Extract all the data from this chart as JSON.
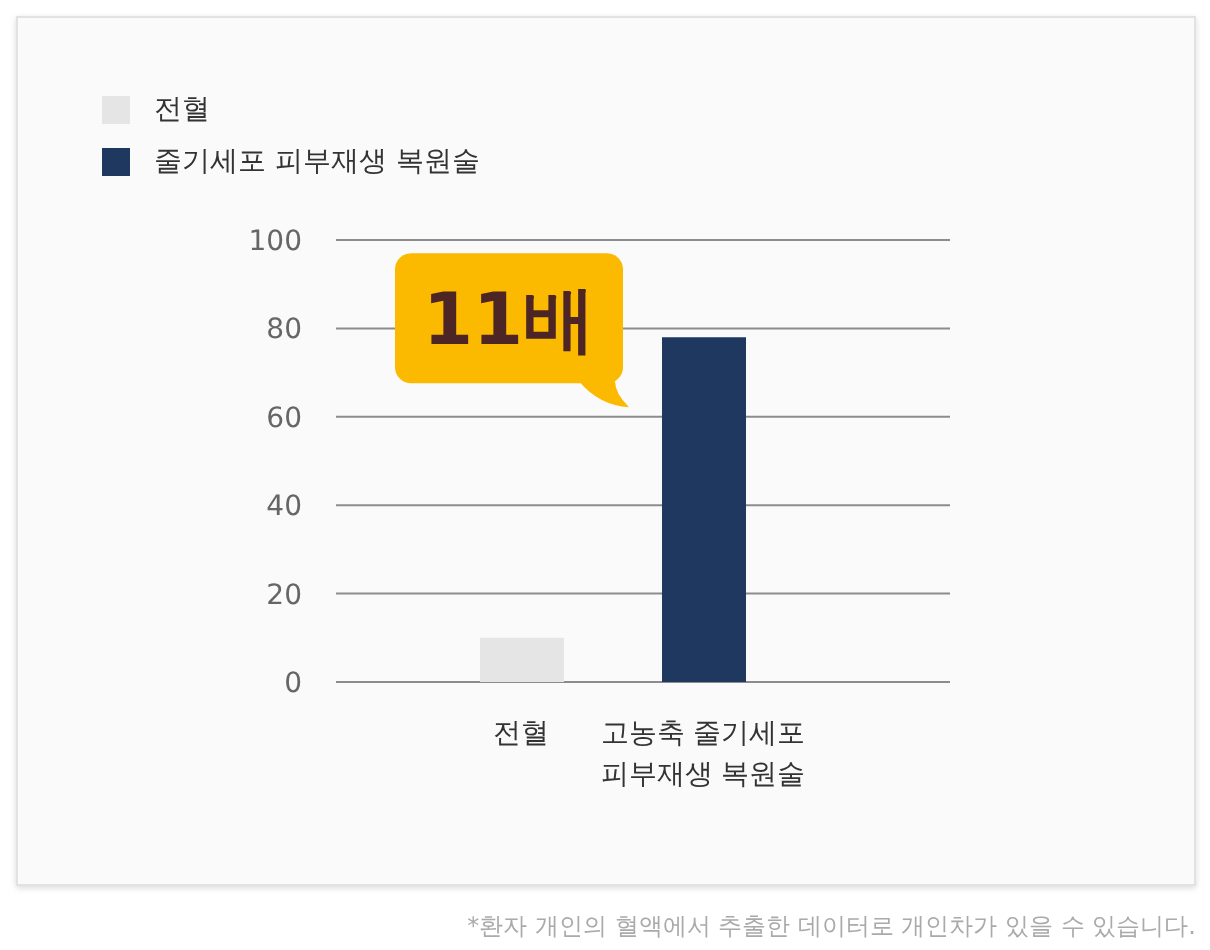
{
  "chart_data": {
    "type": "bar",
    "categories": [
      "전혈",
      "고농축 줄기세포\n피부재생 복원술"
    ],
    "series": [
      {
        "name": "전혈",
        "color": "#e5e5e5",
        "values": [
          10,
          null
        ]
      },
      {
        "name": "줄기세포 피부재생 복원술",
        "color": "#1e3860",
        "values": [
          null,
          78
        ]
      }
    ],
    "ylim": [
      0,
      100
    ],
    "yticks": [
      0,
      20,
      40,
      60,
      80,
      100
    ],
    "grid": "y",
    "legend": "top left",
    "annotations": [
      {
        "text": "11배",
        "x": "고농축 줄기세포\n피부재생 복원술",
        "y": 78
      },
      "*환자 개인의 혈액에서 추출한 데이터로 개인차가 있을 수 있습니다."
    ]
  }
}
